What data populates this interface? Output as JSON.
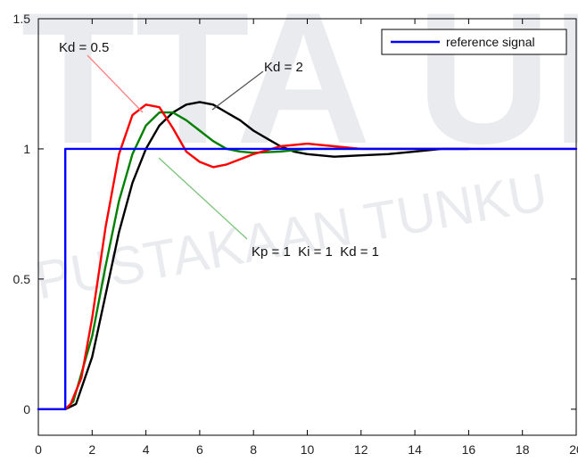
{
  "watermark": {
    "top_text": "TTA UI",
    "bottom_text": "PUSTAKAAN TUNKU"
  },
  "chart_data": {
    "type": "line",
    "title": "",
    "xlabel": "",
    "ylabel": "",
    "xlim": [
      0,
      20
    ],
    "ylim": [
      -0.1,
      1.5
    ],
    "xticks": [
      "0",
      "2",
      "4",
      "6",
      "8",
      "10",
      "12",
      "14",
      "16",
      "18",
      "20"
    ],
    "yticks": [
      "0",
      "0.5",
      "1",
      "1.5"
    ],
    "grid": false,
    "legend": {
      "position": "top-right",
      "entries": [
        "reference signal"
      ]
    },
    "annotations": [
      "Kd = 0.5",
      "Kd = 2",
      "Kp = 1  Ki = 1  Kd = 1"
    ],
    "series": [
      {
        "name": "reference signal",
        "color": "#0000ff",
        "x": [
          0,
          1,
          1,
          20
        ],
        "y": [
          0,
          0,
          1,
          1
        ]
      },
      {
        "color": "#ff0000",
        "x": [
          0,
          1,
          1.2,
          1.6,
          2,
          2.5,
          3,
          3.5,
          4,
          4.5,
          5,
          5.5,
          6,
          6.5,
          7,
          7.5,
          8,
          9,
          10,
          11,
          12,
          14,
          16,
          18,
          20
        ],
        "y": [
          0,
          0,
          0.02,
          0.12,
          0.35,
          0.7,
          0.98,
          1.13,
          1.17,
          1.16,
          1.08,
          0.99,
          0.95,
          0.93,
          0.94,
          0.96,
          0.98,
          1.01,
          1.02,
          1.01,
          1.0,
          1.0,
          1.0,
          1.0,
          1.0
        ]
      },
      {
        "color": "#008000",
        "x": [
          0,
          1,
          1.3,
          2,
          2.5,
          3,
          3.5,
          4,
          4.5,
          5,
          5.5,
          6,
          6.5,
          7,
          7.5,
          8,
          9,
          10,
          12,
          14,
          16
        ],
        "y": [
          0,
          0,
          0.03,
          0.28,
          0.55,
          0.8,
          0.98,
          1.09,
          1.14,
          1.14,
          1.11,
          1.07,
          1.03,
          1.0,
          0.99,
          0.985,
          0.99,
          1.0,
          1.0,
          1.0,
          1.0
        ]
      },
      {
        "color": "#000000",
        "x": [
          0,
          1,
          1.4,
          2,
          2.5,
          3,
          3.5,
          4,
          4.5,
          5,
          5.5,
          6,
          6.5,
          7,
          7.5,
          8,
          8.5,
          9,
          9.5,
          10,
          11,
          12,
          13,
          14,
          15,
          16
        ],
        "y": [
          0,
          0,
          0.02,
          0.2,
          0.44,
          0.68,
          0.87,
          1.0,
          1.09,
          1.14,
          1.17,
          1.18,
          1.17,
          1.14,
          1.11,
          1.07,
          1.04,
          1.01,
          0.99,
          0.98,
          0.97,
          0.975,
          0.98,
          0.99,
          1.0,
          1.0
        ]
      }
    ]
  }
}
